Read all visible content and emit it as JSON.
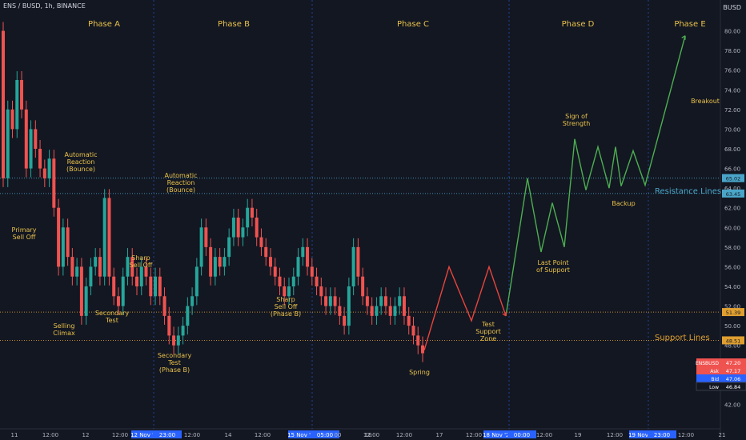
{
  "header": {
    "symbol": "ENS / BUSD, 1h, BINANCE",
    "currency": "BUSD"
  },
  "colors": {
    "background": "#131722",
    "up": "#26a69a",
    "down": "#ef5350",
    "annotation": "#e8c14a",
    "teal_text": "#26a69a",
    "resistance": "#4aa6c9",
    "support": "#e0a030",
    "accumulation_line": "#e8453c",
    "markup_line": "#4caf50"
  },
  "chart_data": {
    "type": "candlestick",
    "price_axis": {
      "min": 40,
      "max": 82,
      "ticks": [
        "42.00",
        "44.00",
        "46.00",
        "48.00",
        "50.00",
        "52.00",
        "54.00",
        "56.00",
        "58.00",
        "60.00",
        "62.00",
        "64.00",
        "66.00",
        "68.00",
        "70.00",
        "72.00",
        "74.00",
        "76.00",
        "78.00",
        "80.00"
      ]
    },
    "time_axis": {
      "labels": [
        "11",
        "12:00",
        "12",
        "12:00",
        "12 Nov '21",
        "23:00",
        "12:00",
        "14",
        "12:00",
        "15 Nov '21",
        "05:00",
        "00",
        "12:00",
        "16",
        "12:00",
        "17",
        "12:00",
        "18 Nov '21",
        "00:00",
        "12:00",
        "19",
        "12:00",
        "19 Nov '21",
        "23:00",
        "12:00",
        "21"
      ]
    },
    "phases": [
      "Phase A",
      "Phase B",
      "Phase C",
      "Phase D",
      "Phase E"
    ],
    "annotations": [
      "Primary Sell Off",
      "Selling Climax",
      "Automatic Reaction (Bounce)",
      "Secondary Test",
      "Sharp Sell Off",
      "Secondary Test (Phase B)",
      "Automatic Reaction (Bounce)",
      "Sharp Sell Off (Phase B)",
      "Spring",
      "Test Support Zone",
      "Last Point of Support",
      "Sign of Strength",
      "Backup",
      "Breakout"
    ],
    "levels": [
      {
        "name": "Resistance Lines",
        "values": [
          65.02,
          63.45
        ]
      },
      {
        "name": "Support Lines",
        "values": [
          51.39,
          48.51
        ]
      }
    ],
    "price_labels": [
      {
        "label": "ENSBUSD",
        "value": "47.20"
      },
      {
        "label": "Ask",
        "value": "47.17"
      },
      {
        "label": "Bid",
        "value": "47.06"
      },
      {
        "label": "Low",
        "value": "46.84"
      }
    ],
    "level_tags": [
      "65.02",
      "63.45",
      "51.39",
      "48.51"
    ],
    "candles": [
      [
        80,
        65
      ],
      [
        65,
        72
      ],
      [
        72,
        70
      ],
      [
        70,
        75
      ],
      [
        75,
        72
      ],
      [
        72,
        66
      ],
      [
        66,
        70
      ],
      [
        70,
        68
      ],
      [
        68,
        66
      ],
      [
        66,
        65
      ],
      [
        65,
        67
      ],
      [
        67,
        62
      ],
      [
        62,
        56
      ],
      [
        56,
        60
      ],
      [
        60,
        57
      ],
      [
        57,
        55
      ],
      [
        55,
        56
      ],
      [
        56,
        51
      ],
      [
        51,
        54
      ],
      [
        54,
        56
      ],
      [
        56,
        57
      ],
      [
        57,
        55
      ],
      [
        55,
        63
      ],
      [
        63,
        55
      ],
      [
        55,
        53
      ],
      [
        53,
        52
      ],
      [
        52,
        55
      ],
      [
        55,
        57
      ],
      [
        57,
        55
      ],
      [
        55,
        54
      ],
      [
        54,
        56
      ],
      [
        56,
        55
      ],
      [
        55,
        53
      ],
      [
        53,
        55
      ],
      [
        55,
        53
      ],
      [
        53,
        51
      ],
      [
        51,
        49
      ],
      [
        49,
        48
      ],
      [
        48,
        49
      ],
      [
        49,
        50
      ],
      [
        50,
        52
      ],
      [
        52,
        53
      ],
      [
        53,
        56
      ],
      [
        56,
        60
      ],
      [
        60,
        58
      ],
      [
        58,
        55
      ],
      [
        55,
        57
      ],
      [
        57,
        56
      ],
      [
        56,
        57
      ],
      [
        57,
        59
      ],
      [
        59,
        61
      ],
      [
        61,
        59
      ],
      [
        59,
        60
      ],
      [
        60,
        62
      ],
      [
        62,
        61
      ],
      [
        61,
        59
      ],
      [
        59,
        58
      ],
      [
        58,
        57
      ],
      [
        57,
        56
      ],
      [
        56,
        55
      ],
      [
        55,
        54
      ],
      [
        54,
        53
      ],
      [
        53,
        54
      ],
      [
        54,
        55
      ],
      [
        55,
        57
      ],
      [
        57,
        58
      ],
      [
        58,
        56
      ],
      [
        56,
        55
      ],
      [
        55,
        54
      ],
      [
        54,
        53
      ],
      [
        53,
        52
      ],
      [
        52,
        53
      ],
      [
        53,
        52
      ],
      [
        52,
        51
      ],
      [
        51,
        50
      ],
      [
        50,
        54
      ],
      [
        54,
        58
      ],
      [
        58,
        55
      ],
      [
        55,
        53
      ],
      [
        53,
        52
      ],
      [
        52,
        51
      ],
      [
        51,
        52
      ],
      [
        52,
        53
      ],
      [
        53,
        52
      ],
      [
        52,
        51
      ],
      [
        51,
        52
      ],
      [
        52,
        53
      ],
      [
        53,
        51
      ],
      [
        51,
        50
      ],
      [
        50,
        49
      ],
      [
        49,
        48
      ],
      [
        48,
        47.2
      ]
    ],
    "accumulation_path": [
      [
        47.5
      ],
      [
        56
      ],
      [
        50.5
      ],
      [
        56
      ],
      [
        51
      ]
    ],
    "markup_path": [
      [
        51
      ],
      [
        65
      ],
      [
        57.5
      ],
      [
        62.5
      ],
      [
        58
      ],
      [
        69
      ],
      [
        63.8
      ],
      [
        68.2
      ],
      [
        64
      ],
      [
        68.2
      ],
      [
        64.2
      ],
      [
        67.8
      ],
      [
        64.3
      ],
      [
        79.5
      ]
    ]
  }
}
